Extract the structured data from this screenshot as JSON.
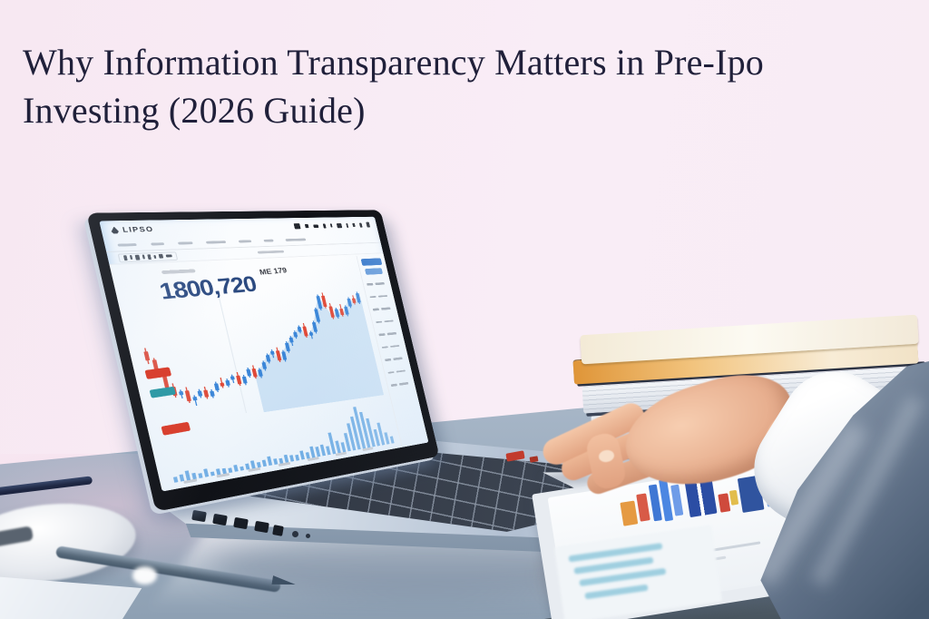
{
  "title": {
    "line1": "Why Information Transparency Matters in Pre-Ipo",
    "line2": "Investing (2026 Guide)"
  },
  "laptop_screen": {
    "logo_text": "LIPSO",
    "price_display": "1800,720",
    "chart_label": "ME 179"
  },
  "scene_colors": {
    "background_pink": "#f8ebf4",
    "title_text": "#20203a",
    "desk_blue_gray": "#aebccc",
    "laptop_silver": "#ccd6e2",
    "book_pages_orange": "#e8a24c",
    "suit_blue_gray": "#64748c",
    "badge_red": "#d8402f",
    "badge_teal": "#2f9aa6",
    "price_pill_blue": "#2e72c8"
  },
  "chart_data": {
    "type": "candlestick",
    "title": "Trading chart on laptop screen",
    "value_range": [
      28,
      92
    ],
    "grid": "off",
    "colors": {
      "up": "#3b86d8",
      "down": "#e04a38",
      "volume": "#66a7e2",
      "area": "rgba(160,200,236,0.45)"
    },
    "candles_ohlc": [
      [
        63,
        65,
        56,
        58
      ],
      [
        58,
        59,
        50,
        51
      ],
      [
        51,
        52,
        41,
        42
      ],
      [
        42,
        44,
        36,
        37
      ],
      [
        37,
        40,
        35,
        39
      ],
      [
        39,
        41,
        32,
        33
      ],
      [
        33,
        36,
        30,
        35
      ],
      [
        35,
        39,
        34,
        38
      ],
      [
        38,
        40,
        33,
        34
      ],
      [
        34,
        38,
        33,
        37
      ],
      [
        37,
        42,
        36,
        41
      ],
      [
        41,
        44,
        38,
        39
      ],
      [
        39,
        43,
        38,
        42
      ],
      [
        42,
        45,
        40,
        44
      ],
      [
        44,
        46,
        38,
        39
      ],
      [
        39,
        44,
        38,
        43
      ],
      [
        43,
        48,
        42,
        47
      ],
      [
        47,
        49,
        41,
        42
      ],
      [
        42,
        47,
        41,
        46
      ],
      [
        46,
        51,
        45,
        50
      ],
      [
        50,
        55,
        49,
        54
      ],
      [
        54,
        57,
        52,
        56
      ],
      [
        56,
        58,
        49,
        50
      ],
      [
        50,
        56,
        49,
        55
      ],
      [
        55,
        61,
        54,
        60
      ],
      [
        60,
        64,
        58,
        63
      ],
      [
        63,
        67,
        62,
        66
      ],
      [
        66,
        70,
        65,
        69
      ],
      [
        69,
        71,
        62,
        63
      ],
      [
        63,
        66,
        61,
        65
      ],
      [
        65,
        72,
        64,
        71
      ],
      [
        71,
        80,
        70,
        79
      ],
      [
        79,
        88,
        78,
        87
      ],
      [
        87,
        89,
        79,
        80
      ],
      [
        80,
        82,
        72,
        73
      ],
      [
        73,
        79,
        72,
        78
      ],
      [
        78,
        81,
        73,
        74
      ],
      [
        74,
        80,
        73,
        79
      ],
      [
        79,
        85,
        78,
        84
      ],
      [
        84,
        86,
        80,
        81
      ],
      [
        81,
        88,
        80,
        87
      ]
    ],
    "volumes": [
      8,
      10,
      14,
      9,
      7,
      12,
      6,
      9,
      8,
      7,
      10,
      6,
      9,
      12,
      8,
      10,
      14,
      9,
      8,
      12,
      10,
      9,
      14,
      10,
      18,
      16,
      18,
      14,
      35,
      20,
      16,
      30,
      45,
      55,
      70,
      60,
      48,
      28,
      38,
      20,
      12
    ]
  }
}
